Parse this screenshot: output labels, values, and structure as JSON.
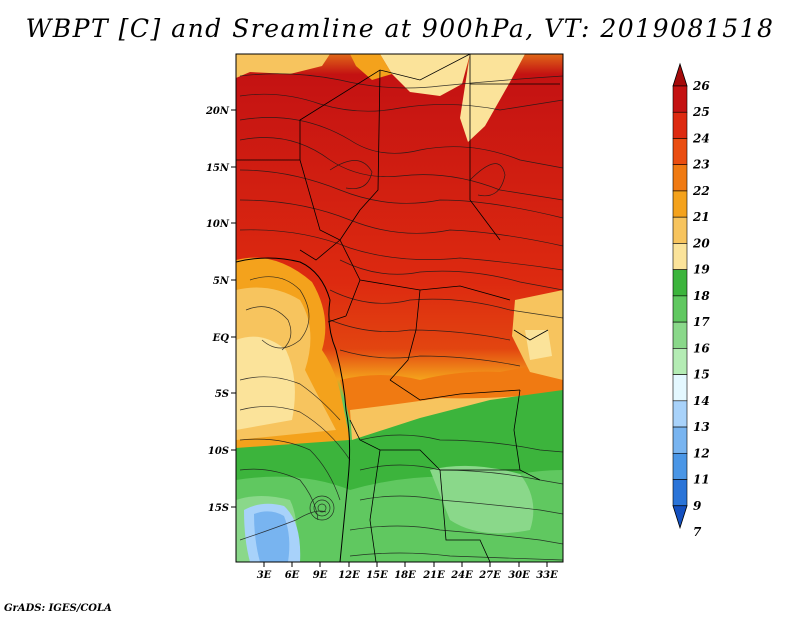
{
  "title": "WBPT [C] and Sreamline at 900hPa, VT: 2019081518",
  "credit": "GrADS: IGES/COLA",
  "map": {
    "lat_labels": [
      "20N",
      "15N",
      "10N",
      "5N",
      "EQ",
      "5S",
      "10S",
      "15S"
    ],
    "lon_labels": [
      "3E",
      "6E",
      "9E",
      "12E",
      "15E",
      "18E",
      "21E",
      "24E",
      "27E",
      "30E",
      "33E"
    ]
  },
  "colorbar": {
    "labels": [
      "26",
      "25",
      "24",
      "23",
      "22",
      "21",
      "20",
      "19",
      "18",
      "17",
      "16",
      "15",
      "14",
      "13",
      "12",
      "11",
      "9",
      "7"
    ],
    "colors": [
      "#a50a0a",
      "#c41212",
      "#dd2a10",
      "#ea4d10",
      "#f07a12",
      "#f4a21c",
      "#f7c45e",
      "#fbe39a",
      "#3cb43c",
      "#60c860",
      "#8ad88a",
      "#b4ecb4",
      "#e4f8ff",
      "#a8d2fa",
      "#78b4f0",
      "#4a96e6",
      "#2a74d8",
      "#1450c0"
    ]
  }
}
